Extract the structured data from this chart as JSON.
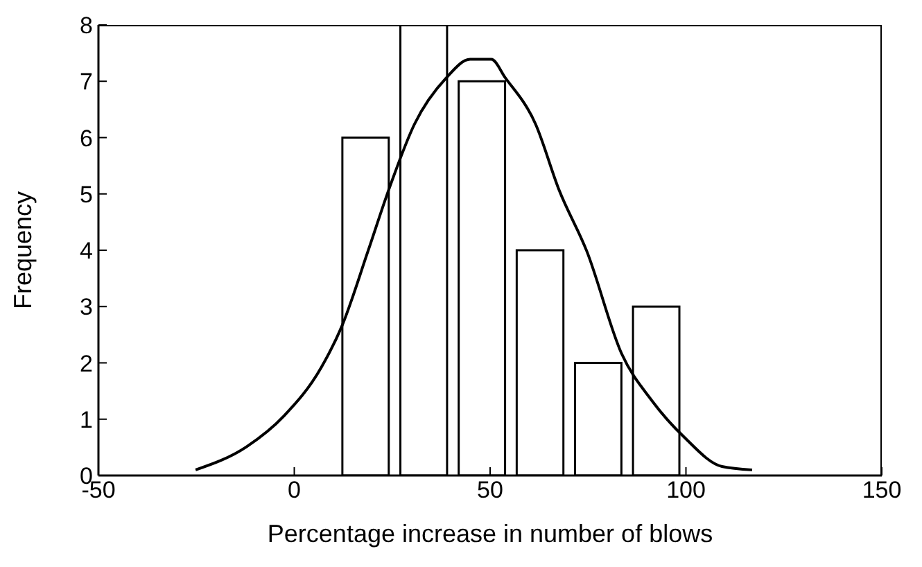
{
  "chart_data": {
    "type": "histogram",
    "xlabel": "Percentage increase in number of blows",
    "ylabel": "Frequency",
    "xlim": [
      -50,
      150
    ],
    "xticks": [
      -50,
      0,
      50,
      100,
      150
    ],
    "ylim": [
      0,
      8
    ],
    "yticks": [
      0,
      1,
      2,
      3,
      4,
      5,
      6,
      7,
      8
    ],
    "grid": false,
    "legend": false,
    "series": [
      {
        "bins": [
          10.8,
          25.6,
          40.5,
          55.3,
          70.2,
          85.0,
          99.8
        ],
        "values": [
          6,
          8,
          7,
          4,
          2,
          3
        ],
        "color": "#000000"
      },
      {
        "type": "line",
        "color": "#000000",
        "x": [
          -25.2,
          -12.2,
          -2.6,
          6.9,
          12.2,
          18.8,
          24.1,
          30.7,
          38.8,
          44.9,
          50.3,
          53.9,
          61.6,
          67.6,
          74.7,
          83.6,
          91.3,
          99.7,
          109.2,
          116.9
        ],
        "values": [
          0.1,
          0.51,
          1.06,
          1.92,
          2.66,
          3.98,
          5.07,
          6.24,
          7.06,
          7.39,
          7.39,
          7.06,
          6.24,
          5.07,
          3.98,
          2.16,
          1.33,
          0.67,
          0.16,
          0.1
        ]
      }
    ]
  }
}
